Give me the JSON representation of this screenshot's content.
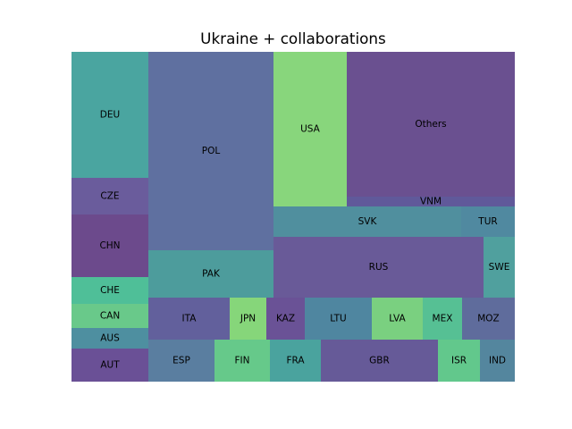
{
  "chart_data": {
    "type": "treemap",
    "title": "Ukraine + collaborations",
    "layout_order": [
      "DEU",
      "CZE",
      "CHN",
      "CHE",
      "CAN",
      "AUS",
      "AUT",
      "POL",
      "PAK",
      "USA",
      "Others",
      "VNM",
      "SVK",
      "TUR",
      "RUS",
      "SWE",
      "ITA",
      "JPN",
      "KAZ",
      "LTU",
      "LVA",
      "MEX",
      "MOZ",
      "ESP",
      "FIN",
      "FRA",
      "GBR",
      "ISR",
      "IND"
    ],
    "items": [
      {
        "label": "DEU",
        "value": 12.0,
        "color": "#4aa5a0"
      },
      {
        "label": "CZE",
        "value": 3.5,
        "color": "#6a5c9c"
      },
      {
        "label": "CHN",
        "value": 6.0,
        "color": "#6c4a8c"
      },
      {
        "label": "CHE",
        "value": 2.5,
        "color": "#4fbf98"
      },
      {
        "label": "CAN",
        "value": 2.3,
        "color": "#69c98a"
      },
      {
        "label": "AUS",
        "value": 2.0,
        "color": "#4e8fa0"
      },
      {
        "label": "AUT",
        "value": 3.1,
        "color": "#6a5096"
      },
      {
        "label": "POL",
        "value": 31.0,
        "color": "#5f70a0"
      },
      {
        "label": "PAK",
        "value": 7.5,
        "color": "#4d9c9c"
      },
      {
        "label": "USA",
        "value": 14.0,
        "color": "#88d67c"
      },
      {
        "label": "Others",
        "value": 25.0,
        "color": "#6a5090"
      },
      {
        "label": "VNM",
        "value": 1.8,
        "color": "#60599a"
      },
      {
        "label": "SVK",
        "value": 5.0,
        "color": "#508f9e"
      },
      {
        "label": "TUR",
        "value": 1.5,
        "color": "#5089a0"
      },
      {
        "label": "RUS",
        "value": 12.2,
        "color": "#695a98"
      },
      {
        "label": "SWE",
        "value": 3.6,
        "color": "#50a09e"
      },
      {
        "label": "ITA",
        "value": 4.3,
        "color": "#62609c"
      },
      {
        "label": "JPN",
        "value": 2.0,
        "color": "#86d67a"
      },
      {
        "label": "KAZ",
        "value": 2.1,
        "color": "#6a5296"
      },
      {
        "label": "LTU",
        "value": 3.6,
        "color": "#4f86a0"
      },
      {
        "label": "LVA",
        "value": 2.7,
        "color": "#7ad080"
      },
      {
        "label": "MEX",
        "value": 2.1,
        "color": "#56c094"
      },
      {
        "label": "MOZ",
        "value": 2.8,
        "color": "#5f6c9c"
      },
      {
        "label": "ESP",
        "value": 3.6,
        "color": "#5a7ea0"
      },
      {
        "label": "FIN",
        "value": 3.0,
        "color": "#66c98a"
      },
      {
        "label": "FRA",
        "value": 2.7,
        "color": "#4aa39e"
      },
      {
        "label": "GBR",
        "value": 6.2,
        "color": "#665a98"
      },
      {
        "label": "ISR",
        "value": 2.2,
        "color": "#62c88c"
      },
      {
        "label": "IND",
        "value": 1.8,
        "color": "#54869e"
      }
    ]
  }
}
